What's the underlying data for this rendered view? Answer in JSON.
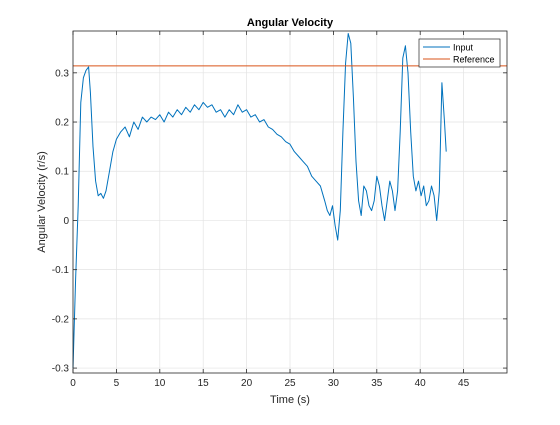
{
  "chart_data": {
    "type": "line",
    "title": "Angular Velocity",
    "xlabel": "Time (s)",
    "ylabel": "Angular Velocity (r/s)",
    "xlim": [
      0,
      50
    ],
    "ylim": [
      -0.31,
      0.385
    ],
    "xticks": [
      0,
      5,
      10,
      15,
      20,
      25,
      30,
      35,
      40,
      45
    ],
    "yticks": [
      -0.3,
      -0.2,
      -0.1,
      0,
      0.1,
      0.2,
      0.3
    ],
    "xtick_labels": [
      "0",
      "5",
      "10",
      "15",
      "20",
      "25",
      "30",
      "35",
      "40",
      "45"
    ],
    "ytick_labels": [
      "-0.3",
      "-0.2",
      "-0.1",
      "0",
      "0.1",
      "0.2",
      "0.3"
    ],
    "grid": true,
    "legend_position": "top-right",
    "series": [
      {
        "name": "Input",
        "color": "#0072BD",
        "x": [
          0,
          0.3,
          0.6,
          0.9,
          1.2,
          1.5,
          1.8,
          2.0,
          2.3,
          2.6,
          2.9,
          3.2,
          3.5,
          3.8,
          4.2,
          4.6,
          5.0,
          5.5,
          6.0,
          6.5,
          7.0,
          7.5,
          8.0,
          8.5,
          9.0,
          9.5,
          10.0,
          10.5,
          11.0,
          11.5,
          12.0,
          12.5,
          13.0,
          13.5,
          14.0,
          14.5,
          15.0,
          15.5,
          16.0,
          16.5,
          17.0,
          17.5,
          18.0,
          18.5,
          19.0,
          19.5,
          20.0,
          20.5,
          21.0,
          21.5,
          22.0,
          22.5,
          23.0,
          23.5,
          24.0,
          24.5,
          25.0,
          25.5,
          26.0,
          26.5,
          27.0,
          27.5,
          28.0,
          28.5,
          29.0,
          29.3,
          29.6,
          29.9,
          30.2,
          30.5,
          30.8,
          31.1,
          31.4,
          31.7,
          32.0,
          32.3,
          32.6,
          32.9,
          33.2,
          33.5,
          33.8,
          34.1,
          34.4,
          34.7,
          35.0,
          35.3,
          35.6,
          35.9,
          36.2,
          36.5,
          36.8,
          37.1,
          37.4,
          37.7,
          38.0,
          38.3,
          38.6,
          38.9,
          39.2,
          39.5,
          39.8,
          40.1,
          40.4,
          40.7,
          41.0,
          41.3,
          41.6,
          41.9,
          42.2,
          42.5,
          42.8,
          43.0
        ],
        "y": [
          -0.3,
          -0.12,
          0.03,
          0.24,
          0.29,
          0.305,
          0.312,
          0.26,
          0.15,
          0.08,
          0.05,
          0.055,
          0.045,
          0.06,
          0.1,
          0.14,
          0.165,
          0.18,
          0.19,
          0.17,
          0.2,
          0.185,
          0.21,
          0.2,
          0.21,
          0.205,
          0.215,
          0.2,
          0.22,
          0.21,
          0.225,
          0.215,
          0.23,
          0.22,
          0.235,
          0.225,
          0.24,
          0.23,
          0.235,
          0.22,
          0.225,
          0.21,
          0.225,
          0.215,
          0.235,
          0.22,
          0.225,
          0.21,
          0.215,
          0.2,
          0.205,
          0.19,
          0.185,
          0.175,
          0.17,
          0.16,
          0.155,
          0.14,
          0.13,
          0.12,
          0.11,
          0.09,
          0.08,
          0.07,
          0.04,
          0.02,
          0.01,
          0.03,
          -0.01,
          -0.04,
          0.02,
          0.18,
          0.32,
          0.38,
          0.36,
          0.25,
          0.12,
          0.04,
          0.01,
          0.07,
          0.06,
          0.03,
          0.02,
          0.04,
          0.09,
          0.07,
          0.03,
          0.0,
          0.04,
          0.08,
          0.06,
          0.02,
          0.06,
          0.18,
          0.33,
          0.355,
          0.3,
          0.18,
          0.09,
          0.06,
          0.08,
          0.05,
          0.07,
          0.03,
          0.04,
          0.07,
          0.05,
          0.0,
          0.06,
          0.28,
          0.2,
          0.14
        ]
      },
      {
        "name": "Reference",
        "color": "#D95319",
        "x": [
          0,
          50
        ],
        "y": [
          0.314,
          0.314
        ]
      }
    ]
  }
}
